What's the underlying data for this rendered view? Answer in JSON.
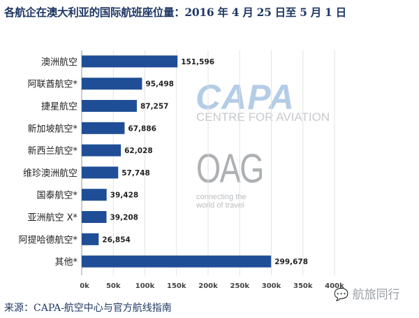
{
  "title": "各航企在澳大利亚的国际航班座位量：2016 年 4 月 25 日至 5 月 1 日",
  "source": "来源：CAPA-航空中心与官方航线指南",
  "watermark": "航旅同行",
  "logos": {
    "capa": "CAPA",
    "capa_sub": "CENTRE FOR AVIATION",
    "oag": "OAG",
    "oag_sub": "connecting the world of travel"
  },
  "colors": {
    "bar": "#1f4e96",
    "text": "#1f3864"
  },
  "chart_data": {
    "type": "bar",
    "orientation": "horizontal",
    "title": "各航企在澳大利亚的国际航班座位量：2016 年 4 月 25 日至 5 月 1 日",
    "categories": [
      "澳洲航空",
      "阿联酋航空*",
      "捷星航空",
      "新加坡航空*",
      "新西兰航空*",
      "维珍澳洲航空",
      "国泰航空*",
      "亚洲航空 X*",
      "阿提哈德航空*",
      "其他*"
    ],
    "values": [
      151596,
      95498,
      87257,
      67886,
      62028,
      57748,
      39428,
      39208,
      26854,
      299678
    ],
    "data_labels": [
      "151,596",
      "95,498",
      "87,257",
      "67,886",
      "62,028",
      "57,748",
      "39,428",
      "39,208",
      "26,854",
      "299,678"
    ],
    "xlim": [
      0,
      400000
    ],
    "xticks": [
      0,
      50000,
      100000,
      150000,
      200000,
      250000,
      300000,
      350000,
      400000
    ],
    "xtick_labels": [
      "0k",
      "50k",
      "100k",
      "150k",
      "200k",
      "250k",
      "300k",
      "350k",
      "400k"
    ],
    "grid": "vertical",
    "xlabel": "",
    "ylabel": ""
  }
}
